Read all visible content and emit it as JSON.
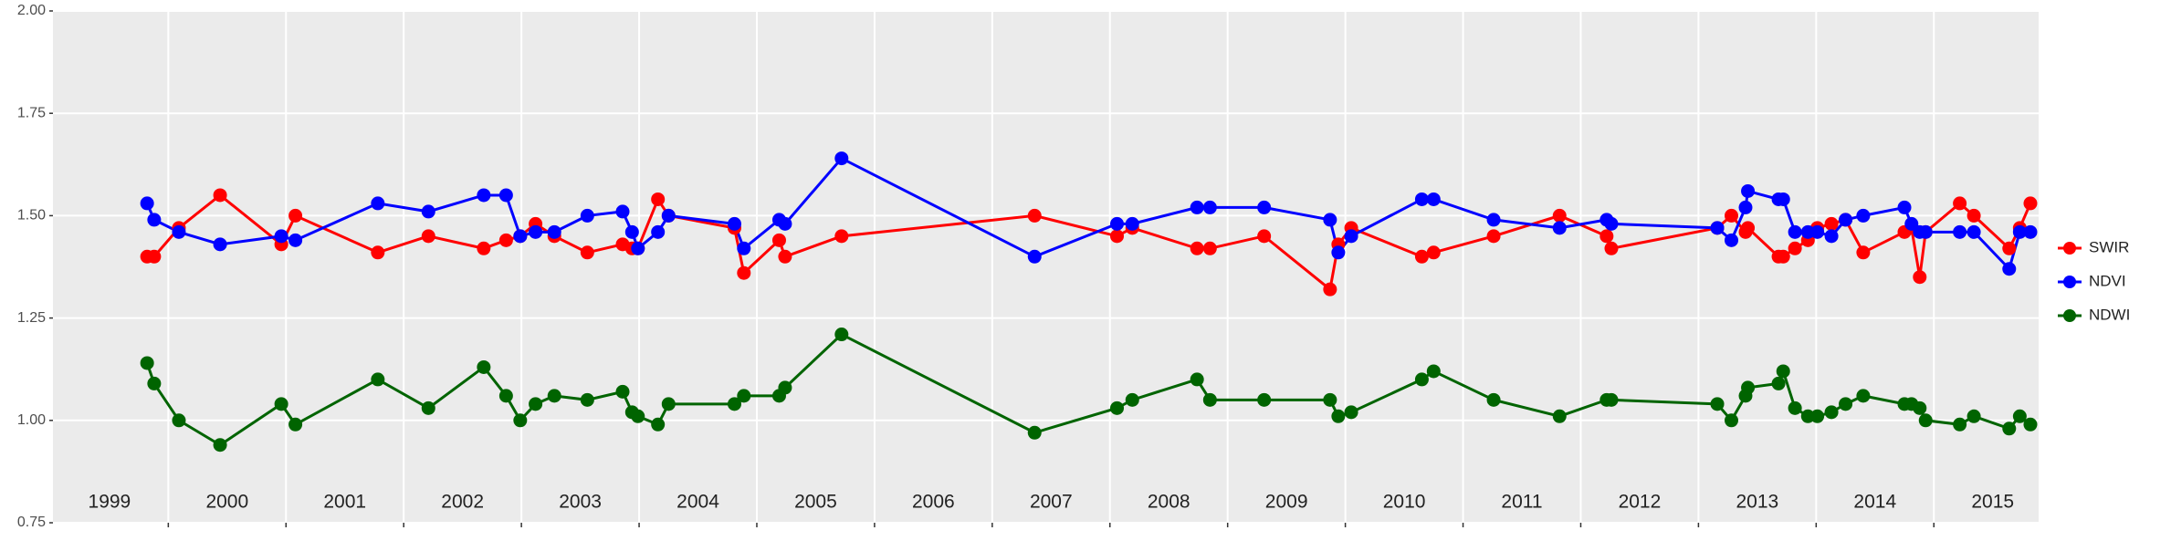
{
  "chart_data": {
    "type": "line",
    "x": [
      1999.82,
      1999.88,
      2000.09,
      2000.44,
      2000.96,
      2001.08,
      2001.78,
      2002.21,
      2002.68,
      2002.87,
      2002.99,
      2003.12,
      2003.28,
      2003.56,
      2003.86,
      2003.94,
      2003.99,
      2004.16,
      2004.25,
      2004.81,
      2004.89,
      2005.19,
      2005.24,
      2005.72,
      2007.36,
      2008.06,
      2008.19,
      2008.74,
      2008.85,
      2009.31,
      2009.87,
      2009.94,
      2010.05,
      2010.65,
      2010.75,
      2011.26,
      2011.82,
      2012.22,
      2012.26,
      2013.16,
      2013.28,
      2013.4,
      2013.42,
      2013.68,
      2013.72,
      2013.82,
      2013.93,
      2014.01,
      2014.13,
      2014.25,
      2014.4,
      2014.75,
      2014.81,
      2014.88,
      2014.93,
      2015.22,
      2015.34,
      2015.64,
      2015.73,
      2015.82
    ],
    "series": [
      {
        "name": "SWIR",
        "color": "#ff0000",
        "values": [
          1.4,
          1.4,
          1.47,
          1.55,
          1.43,
          1.5,
          1.41,
          1.45,
          1.42,
          1.44,
          1.45,
          1.48,
          1.45,
          1.41,
          1.43,
          1.42,
          1.42,
          1.54,
          1.5,
          1.47,
          1.36,
          1.44,
          1.4,
          1.45,
          1.5,
          1.45,
          1.47,
          1.42,
          1.42,
          1.45,
          1.32,
          1.43,
          1.47,
          1.4,
          1.41,
          1.45,
          1.5,
          1.45,
          1.42,
          1.47,
          1.5,
          1.46,
          1.47,
          1.4,
          1.4,
          1.42,
          1.44,
          1.47,
          1.48,
          1.49,
          1.41,
          1.46,
          1.47,
          1.35,
          1.46,
          1.53,
          1.5,
          1.42,
          1.47,
          1.53
        ]
      },
      {
        "name": "NDVI",
        "color": "#0000ff",
        "values": [
          1.53,
          1.49,
          1.46,
          1.43,
          1.45,
          1.44,
          1.53,
          1.51,
          1.55,
          1.55,
          1.45,
          1.46,
          1.46,
          1.5,
          1.51,
          1.46,
          1.42,
          1.46,
          1.5,
          1.48,
          1.42,
          1.49,
          1.48,
          1.64,
          1.4,
          1.48,
          1.48,
          1.52,
          1.52,
          1.52,
          1.49,
          1.41,
          1.45,
          1.54,
          1.54,
          1.49,
          1.47,
          1.49,
          1.48,
          1.47,
          1.44,
          1.52,
          1.56,
          1.54,
          1.54,
          1.46,
          1.46,
          1.46,
          1.45,
          1.49,
          1.5,
          1.52,
          1.48,
          1.46,
          1.46,
          1.46,
          1.46,
          1.37,
          1.46,
          1.46
        ]
      },
      {
        "name": "NDWI",
        "color": "#006400",
        "values": [
          1.14,
          1.09,
          1.0,
          0.94,
          1.04,
          0.99,
          1.1,
          1.03,
          1.13,
          1.06,
          1.0,
          1.04,
          1.06,
          1.05,
          1.07,
          1.02,
          1.01,
          0.99,
          1.04,
          1.04,
          1.06,
          1.06,
          1.08,
          1.21,
          0.97,
          1.03,
          1.05,
          1.1,
          1.05,
          1.05,
          1.05,
          1.01,
          1.02,
          1.1,
          1.12,
          1.05,
          1.01,
          1.05,
          1.05,
          1.04,
          1.0,
          1.06,
          1.08,
          1.09,
          1.12,
          1.03,
          1.01,
          1.01,
          1.02,
          1.04,
          1.06,
          1.04,
          1.04,
          1.03,
          1.0,
          0.99,
          1.01,
          0.98,
          1.01,
          0.99
        ]
      }
    ],
    "xlim": [
      1999.02,
      2015.89
    ],
    "xgrid": [
      2000,
      2001,
      2002,
      2003,
      2004,
      2005,
      2006,
      2007,
      2008,
      2009,
      2010,
      2011,
      2012,
      2013,
      2014,
      2015
    ],
    "xticks": [
      {
        "value": 1999.5,
        "label": "1999"
      },
      {
        "value": 2000.5,
        "label": "2000"
      },
      {
        "value": 2001.5,
        "label": "2001"
      },
      {
        "value": 2002.5,
        "label": "2002"
      },
      {
        "value": 2003.5,
        "label": "2003"
      },
      {
        "value": 2004.5,
        "label": "2004"
      },
      {
        "value": 2005.5,
        "label": "2005"
      },
      {
        "value": 2006.5,
        "label": "2006"
      },
      {
        "value": 2007.5,
        "label": "2007"
      },
      {
        "value": 2008.5,
        "label": "2008"
      },
      {
        "value": 2009.5,
        "label": "2009"
      },
      {
        "value": 2010.5,
        "label": "2010"
      },
      {
        "value": 2011.5,
        "label": "2011"
      },
      {
        "value": 2012.5,
        "label": "2012"
      },
      {
        "value": 2013.5,
        "label": "2013"
      },
      {
        "value": 2014.5,
        "label": "2014"
      },
      {
        "value": 2015.5,
        "label": "2015"
      }
    ],
    "ylim": [
      0.75,
      2.0
    ],
    "yticks": [
      0.75,
      {
        "value": 1,
        "label": "1.00"
      },
      1.25,
      {
        "value": 1.5,
        "label": "1.50"
      },
      1.75,
      {
        "value": 2,
        "label": "2.00"
      }
    ],
    "grid": true,
    "legend": "right"
  }
}
